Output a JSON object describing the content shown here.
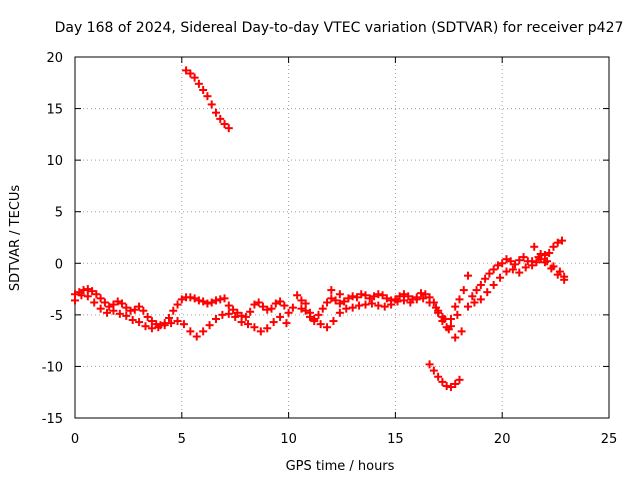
{
  "chart_data": {
    "type": "scatter",
    "title": "Day 168 of 2024, Sidereal Day-to-day VTEC variation (SDTVAR) for receiver p427",
    "xlabel": "GPS time / hours",
    "ylabel": "SDTVAR / TECUs",
    "xlim": [
      0,
      25
    ],
    "ylim": [
      -15,
      20
    ],
    "xticks": [
      0,
      5,
      10,
      15,
      20,
      25
    ],
    "yticks": [
      -15,
      -10,
      -5,
      0,
      5,
      10,
      15,
      20
    ],
    "grid": true,
    "marker": "+",
    "series": [
      {
        "name": "SDTVAR",
        "color": "#ff0000",
        "x": [
          0.0,
          0.2,
          0.4,
          0.6,
          0.8,
          1.0,
          1.2,
          1.4,
          1.6,
          1.8,
          2.0,
          2.2,
          2.4,
          2.6,
          2.8,
          3.0,
          3.2,
          3.4,
          3.6,
          3.8,
          4.0,
          4.2,
          4.4,
          4.6,
          4.8,
          5.0,
          5.2,
          5.4,
          5.6,
          5.8,
          6.0,
          6.2,
          6.4,
          6.6,
          6.8,
          7.0,
          7.2,
          7.4,
          7.6,
          7.8,
          8.0,
          8.2,
          8.4,
          8.6,
          8.8,
          9.0,
          9.2,
          9.4,
          9.6,
          9.8,
          10.0,
          10.2,
          10.4,
          10.6,
          10.8,
          11.0,
          11.2,
          11.4,
          11.6,
          11.8,
          12.0,
          12.2,
          12.4,
          12.6,
          12.8,
          13.0,
          13.2,
          13.4,
          13.6,
          13.8,
          14.0,
          14.2,
          14.4,
          14.6,
          14.8,
          15.0,
          15.2,
          15.4,
          15.6,
          15.8,
          16.0,
          16.2,
          16.4,
          16.6,
          16.8,
          17.0,
          17.2,
          17.4,
          17.6,
          17.8,
          18.0,
          18.2,
          18.4,
          18.6,
          18.8,
          19.0,
          19.2,
          19.4,
          19.6,
          19.8,
          20.0,
          20.2,
          20.4,
          20.6,
          20.8,
          21.0,
          21.2,
          21.4,
          21.6,
          21.8,
          22.0,
          22.2,
          22.4,
          22.6,
          22.8,
          5.2,
          5.4,
          5.6,
          5.8,
          6.0,
          6.2,
          6.4,
          6.6,
          6.8,
          7.0,
          7.2,
          16.6,
          16.8,
          17.0,
          17.2,
          17.4,
          17.6,
          17.8,
          18.0,
          0.0,
          0.3,
          0.6,
          0.9,
          1.2,
          1.5,
          1.8,
          2.1,
          2.4,
          2.7,
          3.0,
          3.3,
          3.6,
          3.9,
          4.2,
          4.5,
          4.8,
          5.1,
          5.4,
          5.7,
          6.0,
          6.3,
          6.6,
          6.9,
          7.2,
          7.5,
          7.8,
          8.1,
          8.4,
          8.7,
          9.0,
          9.3,
          9.6,
          9.9,
          11.2,
          11.5,
          11.8,
          12.1,
          12.4,
          12.7,
          13.0,
          13.3,
          13.6,
          13.9,
          14.2,
          14.5,
          14.8,
          15.1,
          15.4,
          15.7,
          16.0,
          16.3,
          16.6,
          16.9,
          17.2,
          17.5,
          17.8,
          18.1,
          18.4,
          18.7,
          19.0,
          19.3,
          19.6,
          19.9,
          20.2,
          20.5,
          20.8,
          21.1,
          21.4,
          21.7,
          22.0,
          22.3,
          22.6,
          22.9,
          21.5,
          21.8,
          22.1,
          22.4,
          22.7,
          22.9,
          10.6,
          10.8,
          11.0,
          12.0,
          12.4,
          17.0,
          17.3,
          17.6,
          17.9
        ],
        "y": [
          -3.0,
          -2.8,
          -2.6,
          -2.5,
          -2.7,
          -3.0,
          -3.4,
          -3.8,
          -4.2,
          -4.0,
          -3.7,
          -3.9,
          -4.3,
          -4.6,
          -4.5,
          -4.2,
          -4.6,
          -5.2,
          -5.6,
          -5.9,
          -6.0,
          -5.8,
          -5.3,
          -4.6,
          -4.0,
          -3.5,
          -3.3,
          -3.3,
          -3.4,
          -3.6,
          -3.7,
          -3.9,
          -3.8,
          -3.6,
          -3.5,
          -3.4,
          -4.1,
          -4.5,
          -4.8,
          -5.1,
          -5.2,
          -4.7,
          -4.0,
          -3.8,
          -4.2,
          -4.5,
          -4.4,
          -3.9,
          -3.7,
          -4.1,
          -4.8,
          -4.3,
          -3.1,
          -3.6,
          -4.6,
          -5.2,
          -5.6,
          -5.0,
          -4.4,
          -3.8,
          -3.4,
          -3.6,
          -3.9,
          -3.7,
          -3.4,
          -3.2,
          -3.3,
          -3.0,
          -3.1,
          -3.4,
          -3.2,
          -3.0,
          -3.1,
          -3.4,
          -3.6,
          -3.5,
          -3.2,
          -3.0,
          -3.2,
          -3.5,
          -3.3,
          -2.9,
          -3.0,
          -3.3,
          -3.8,
          -4.6,
          -5.6,
          -6.2,
          -5.4,
          -4.2,
          -3.5,
          -2.6,
          -1.2,
          -3.2,
          -2.6,
          -2.1,
          -1.5,
          -1.0,
          -0.6,
          -0.2,
          0.0,
          0.4,
          0.2,
          -0.1,
          0.3,
          0.6,
          0.2,
          -0.2,
          0.1,
          0.4,
          0.8,
          1.0,
          1.6,
          2.0,
          2.2,
          18.7,
          18.4,
          18.0,
          17.4,
          16.8,
          16.2,
          15.4,
          14.6,
          14.0,
          13.5,
          13.1,
          -9.8,
          -10.4,
          -11.0,
          -11.5,
          -11.9,
          -12.0,
          -11.7,
          -11.3,
          -3.6,
          -3.1,
          -3.2,
          -3.8,
          -4.4,
          -4.8,
          -4.6,
          -4.9,
          -5.1,
          -5.5,
          -5.7,
          -6.1,
          -6.3,
          -6.2,
          -6.0,
          -5.8,
          -5.6,
          -5.9,
          -6.6,
          -7.1,
          -6.6,
          -6.0,
          -5.4,
          -5.0,
          -4.9,
          -5.2,
          -5.7,
          -5.9,
          -6.2,
          -6.6,
          -6.3,
          -5.7,
          -5.2,
          -5.8,
          -5.4,
          -5.9,
          -6.2,
          -5.6,
          -4.8,
          -4.4,
          -4.3,
          -4.1,
          -4.0,
          -3.9,
          -4.1,
          -4.2,
          -4.0,
          -3.7,
          -3.6,
          -3.8,
          -3.5,
          -3.4,
          -3.8,
          -4.3,
          -5.2,
          -6.4,
          -7.2,
          -6.6,
          -4.2,
          -3.8,
          -3.5,
          -2.8,
          -2.1,
          -1.4,
          -0.8,
          -0.6,
          -0.9,
          -0.4,
          0.2,
          0.6,
          0.1,
          -0.5,
          -1.1,
          -1.6,
          1.6,
          0.9,
          0.2,
          -0.3,
          -0.8,
          -1.3,
          -4.4,
          -3.9,
          -4.8,
          -2.6,
          -3.0,
          -4.8,
          -5.4,
          -6.1,
          -5.0
        ]
      }
    ]
  }
}
